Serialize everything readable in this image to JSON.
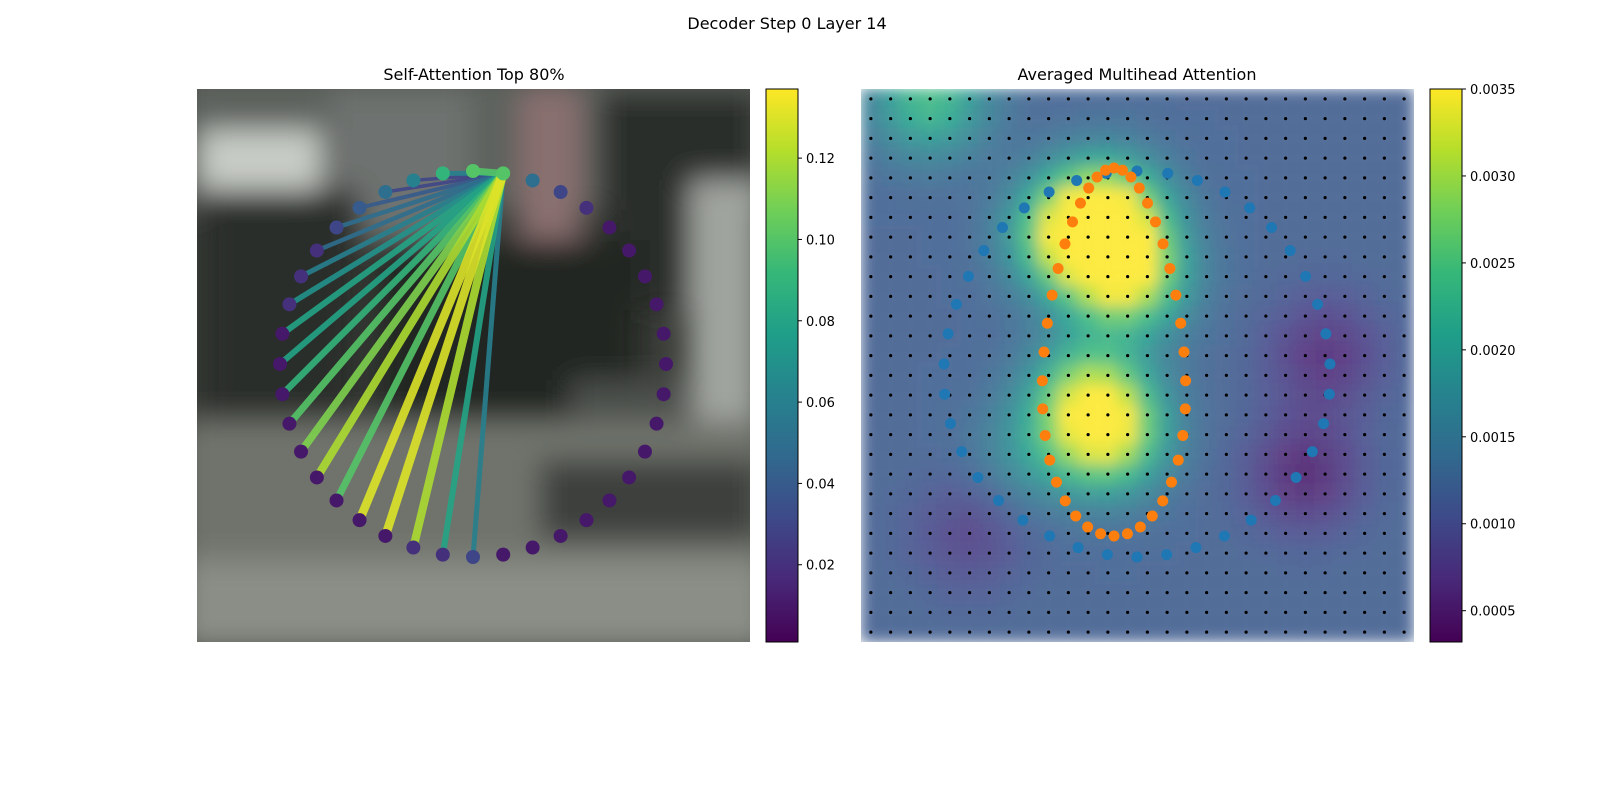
{
  "figure": {
    "suptitle": "Decoder Step 0 Layer 14"
  },
  "colors": {
    "viridis": [
      "#440154",
      "#482878",
      "#3e4989",
      "#31688e",
      "#26828e",
      "#1f9e89",
      "#35b779",
      "#6ece58",
      "#b5de2b",
      "#fde725"
    ],
    "blue_points": "#1f77b4",
    "orange_points": "#ff7f0e",
    "grid_dots": "#000000"
  },
  "chart_data": [
    {
      "type": "scatter",
      "subtype": "attention-graph",
      "title": "Self-Attention Top 80%",
      "background": "blurred street photo",
      "node_count": 40,
      "node_layout": "ring",
      "source_node_index": 1,
      "node_values": [
        0.1,
        0.1,
        0.05,
        0.03,
        0.02,
        0.01,
        0.01,
        0.01,
        0.01,
        0.01,
        0.01,
        0.01,
        0.01,
        0.01,
        0.01,
        0.01,
        0.01,
        0.01,
        0.01,
        0.01,
        0.03,
        0.02,
        0.02,
        0.01,
        0.01,
        0.01,
        0.01,
        0.01,
        0.01,
        0.01,
        0.01,
        0.01,
        0.02,
        0.02,
        0.02,
        0.03,
        0.04,
        0.05,
        0.06,
        0.09
      ],
      "edges": [
        {
          "target": 0,
          "weight": 0.1
        },
        {
          "target": 20,
          "weight": 0.06
        },
        {
          "target": 21,
          "weight": 0.08
        },
        {
          "target": 22,
          "weight": 0.12
        },
        {
          "target": 23,
          "weight": 0.13
        },
        {
          "target": 24,
          "weight": 0.13
        },
        {
          "target": 25,
          "weight": 0.1
        },
        {
          "target": 26,
          "weight": 0.12
        },
        {
          "target": 27,
          "weight": 0.11
        },
        {
          "target": 28,
          "weight": 0.1
        },
        {
          "target": 29,
          "weight": 0.09
        },
        {
          "target": 30,
          "weight": 0.08
        },
        {
          "target": 31,
          "weight": 0.08
        },
        {
          "target": 32,
          "weight": 0.07
        },
        {
          "target": 33,
          "weight": 0.06
        },
        {
          "target": 34,
          "weight": 0.05
        },
        {
          "target": 35,
          "weight": 0.05
        },
        {
          "target": 36,
          "weight": 0.04
        },
        {
          "target": 37,
          "weight": 0.03
        },
        {
          "target": 38,
          "weight": 0.03
        },
        {
          "target": 39,
          "weight": 0.06
        }
      ],
      "colorbar": {
        "range": [
          0.001,
          0.137
        ],
        "ticks": [
          0.02,
          0.04,
          0.06,
          0.08,
          0.1,
          0.12
        ],
        "tick_labels": [
          "0.02",
          "0.04",
          "0.06",
          "0.08",
          "0.10",
          "0.12"
        ]
      }
    },
    {
      "type": "heatmap",
      "title": "Averaged Multihead Attention",
      "grid_size": [
        28,
        28
      ],
      "hotspots": [
        {
          "row": 6,
          "col": 12,
          "value": 0.0033
        },
        {
          "row": 9,
          "col": 13,
          "value": 0.0032
        },
        {
          "row": 7,
          "col": 10,
          "value": 0.0029
        },
        {
          "row": 17,
          "col": 12,
          "value": 0.0031
        },
        {
          "row": 15,
          "col": 11,
          "value": 0.0026
        },
        {
          "row": 0,
          "col": 3,
          "value": 0.0024
        },
        {
          "row": 18,
          "col": 8,
          "value": 0.0017
        },
        {
          "row": 22,
          "col": 5,
          "value": 0.0008
        },
        {
          "row": 19,
          "col": 22,
          "value": 0.0005
        },
        {
          "row": 13,
          "col": 23,
          "value": 0.0006
        }
      ],
      "base_value": 0.0012,
      "overlay_series": [
        {
          "color_key": "blue_points",
          "count": 40,
          "shape": "outer ring"
        },
        {
          "color_key": "orange_points",
          "count": 40,
          "shape": "inner ring"
        }
      ],
      "colorbar": {
        "range": [
          0.00032,
          0.0035
        ],
        "ticks": [
          0.0005,
          0.001,
          0.0015,
          0.002,
          0.0025,
          0.003,
          0.0035
        ],
        "tick_labels": [
          "0.0005",
          "0.0010",
          "0.0015",
          "0.0020",
          "0.0025",
          "0.0030",
          "0.0035"
        ]
      }
    }
  ]
}
